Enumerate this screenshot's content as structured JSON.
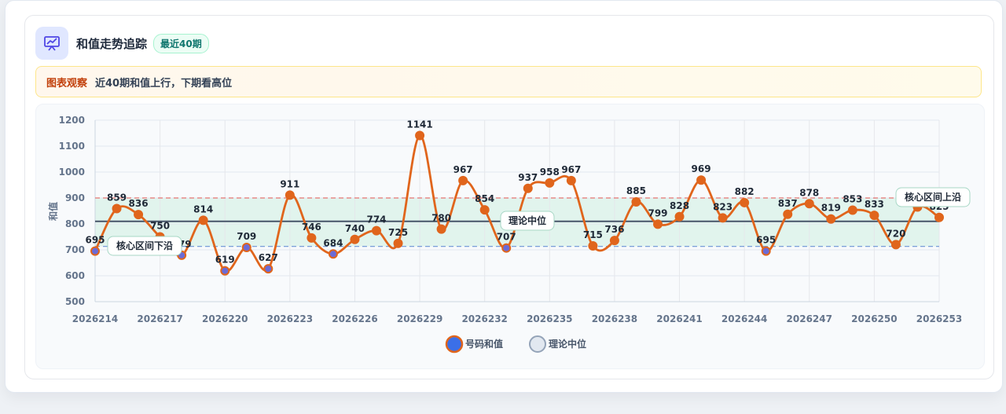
{
  "header": {
    "title": "和值走势追踪",
    "badge": "最近40期",
    "icon": "chart-presentation-icon"
  },
  "observation": {
    "tag": "图表观察",
    "text": "近40期和值上行，下期看高位"
  },
  "chart_data": {
    "type": "line",
    "ylabel": "和值",
    "ylim": [
      500,
      1200
    ],
    "yticks": [
      500,
      600,
      700,
      800,
      900,
      1000,
      1100,
      1200
    ],
    "x_tick_labels": [
      "2026214",
      "2026217",
      "2026220",
      "2026223",
      "2026226",
      "2026229",
      "2026232",
      "2026235",
      "2026238",
      "2026241",
      "2026244",
      "2026247",
      "2026250",
      "2026253"
    ],
    "periods": [
      "2026214",
      "2026215",
      "2026216",
      "2026217",
      "2026218",
      "2026219",
      "2026220",
      "2026221",
      "2026222",
      "2026223",
      "2026224",
      "2026225",
      "2026226",
      "2026227",
      "2026228",
      "2026229",
      "2026230",
      "2026231",
      "2026232",
      "2026233",
      "2026234",
      "2026235",
      "2026236",
      "2026237",
      "2026238",
      "2026239",
      "2026240",
      "2026241",
      "2026242",
      "2026243",
      "2026244",
      "2026245",
      "2026246",
      "2026247",
      "2026248",
      "2026249",
      "2026250",
      "2026251",
      "2026252",
      "2026253"
    ],
    "series": [
      {
        "name": "号码和值",
        "color": "#e0651c",
        "values": [
          695,
          859,
          836,
          750,
          679,
          814,
          619,
          709,
          627,
          911,
          746,
          684,
          740,
          774,
          725,
          1141,
          780,
          967,
          854,
          707,
          937,
          958,
          967,
          715,
          736,
          885,
          799,
          828,
          969,
          823,
          882,
          695,
          837,
          878,
          819,
          853,
          833,
          720,
          865,
          825
        ]
      }
    ],
    "reference_lines": [
      {
        "name": "理论中位",
        "value": 810,
        "color": "#475569",
        "style": "solid",
        "label": "理论中位"
      },
      {
        "name": "核心区间上沿",
        "value": 900,
        "color": "#e57373",
        "style": "dashed",
        "label": "核心区间上沿"
      },
      {
        "name": "核心区间下沿",
        "value": 713,
        "color": "#6b93d6",
        "style": "dashed",
        "label": "核心区间下沿"
      }
    ],
    "band": {
      "from": 713,
      "to": 900,
      "color": "#d9f2e8"
    },
    "legend": [
      {
        "name": "号码和值",
        "fill": "#3b6fe8",
        "stroke": "#e0651c"
      },
      {
        "name": "理论中位",
        "fill": "#e2e8f0",
        "stroke": "#94a3b8"
      }
    ],
    "legend_position": "bottom-center",
    "grid": true
  }
}
